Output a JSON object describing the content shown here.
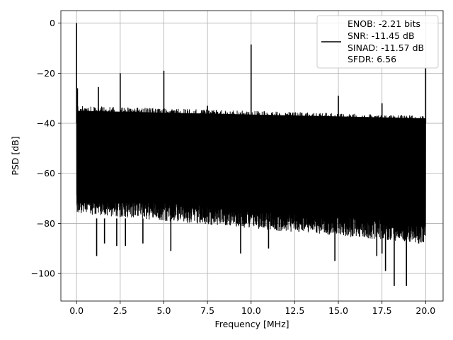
{
  "chart_data": {
    "type": "line",
    "title": "",
    "xlabel": "Frequency [MHz]",
    "ylabel": "PSD [dB]",
    "xlim": [
      -0.9,
      21.0
    ],
    "ylim": [
      -111,
      5
    ],
    "xticks": [
      0.0,
      2.5,
      5.0,
      7.5,
      10.0,
      12.5,
      15.0,
      17.5,
      20.0
    ],
    "xtick_labels": [
      "0.0",
      "2.5",
      "5.0",
      "7.5",
      "10.0",
      "12.5",
      "15.0",
      "17.5",
      "20.0"
    ],
    "yticks": [
      0,
      -20,
      -40,
      -60,
      -80,
      -100
    ],
    "ytick_labels": [
      "0",
      "−20",
      "−40",
      "−60",
      "−80",
      "−100"
    ],
    "grid": true,
    "legend_position": "top-right",
    "line_color": "#000000",
    "noise_floor": {
      "x_range": [
        0.0,
        20.0
      ],
      "upper_envelope_db": [
        -33,
        -37
      ],
      "lower_envelope_db": [
        -68,
        -80
      ],
      "deep_dips": [
        {
          "x": 1.15,
          "y": -93
        },
        {
          "x": 1.6,
          "y": -88
        },
        {
          "x": 2.3,
          "y": -89
        },
        {
          "x": 2.8,
          "y": -89
        },
        {
          "x": 3.8,
          "y": -88
        },
        {
          "x": 5.4,
          "y": -91
        },
        {
          "x": 9.4,
          "y": -92
        },
        {
          "x": 11.0,
          "y": -90
        },
        {
          "x": 14.8,
          "y": -95
        },
        {
          "x": 17.2,
          "y": -93
        },
        {
          "x": 17.5,
          "y": -92
        },
        {
          "x": 17.7,
          "y": -99
        },
        {
          "x": 18.2,
          "y": -105
        },
        {
          "x": 18.9,
          "y": -105
        },
        {
          "x": 19.6,
          "y": -88
        }
      ]
    },
    "peaks": [
      {
        "x": 0.0,
        "y": 0.0
      },
      {
        "x": 0.05,
        "y": -26
      },
      {
        "x": 1.25,
        "y": -25.5
      },
      {
        "x": 2.5,
        "y": -20
      },
      {
        "x": 5.0,
        "y": -19
      },
      {
        "x": 7.5,
        "y": -33
      },
      {
        "x": 10.0,
        "y": -8.5
      },
      {
        "x": 15.0,
        "y": -29
      },
      {
        "x": 17.5,
        "y": -32
      },
      {
        "x": 20.0,
        "y": -18
      }
    ],
    "series": [
      {
        "name": "ENOB: -2.21 bits\nSNR: -11.45 dB\nSINAD: -11.57 dB\nSFDR: 6.56"
      }
    ]
  },
  "legend": {
    "lines": [
      "ENOB: -2.21 bits",
      "SNR: -11.45 dB",
      "SINAD: -11.57 dB",
      "SFDR: 6.56"
    ]
  }
}
